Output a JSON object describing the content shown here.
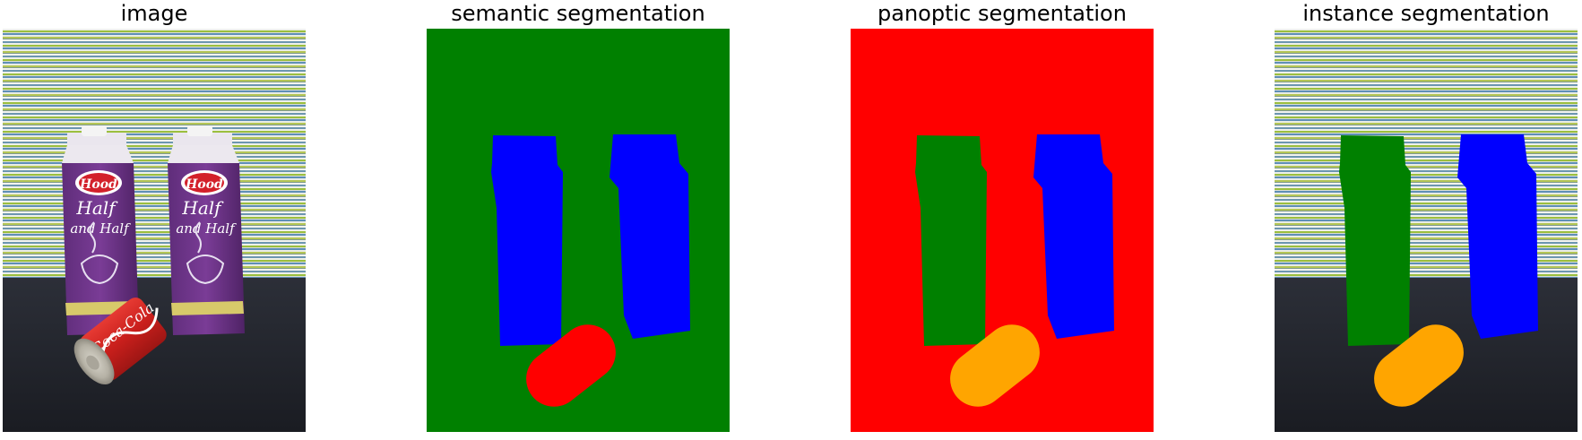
{
  "panels": [
    {
      "title": "image"
    },
    {
      "title": "semantic segmentation"
    },
    {
      "title": "panoptic segmentation"
    },
    {
      "title": "instance segmentation"
    }
  ],
  "photo": {
    "carton_brand": "Hood",
    "carton_product_line1": "Half",
    "carton_product_line2": "and Half",
    "can_brand": "Coca-Cola"
  },
  "colors": {
    "semantic_background": "#008000",
    "semantic_cartons": "#0000ff",
    "semantic_can": "#ff0000",
    "panoptic_background": "#ff0000",
    "panoptic_carton_left": "#008000",
    "panoptic_carton_right": "#0000ff",
    "panoptic_can": "#ffa500",
    "instance_carton_left": "#008000",
    "instance_carton_right": "#0000ff",
    "instance_can": "#ffa500"
  }
}
